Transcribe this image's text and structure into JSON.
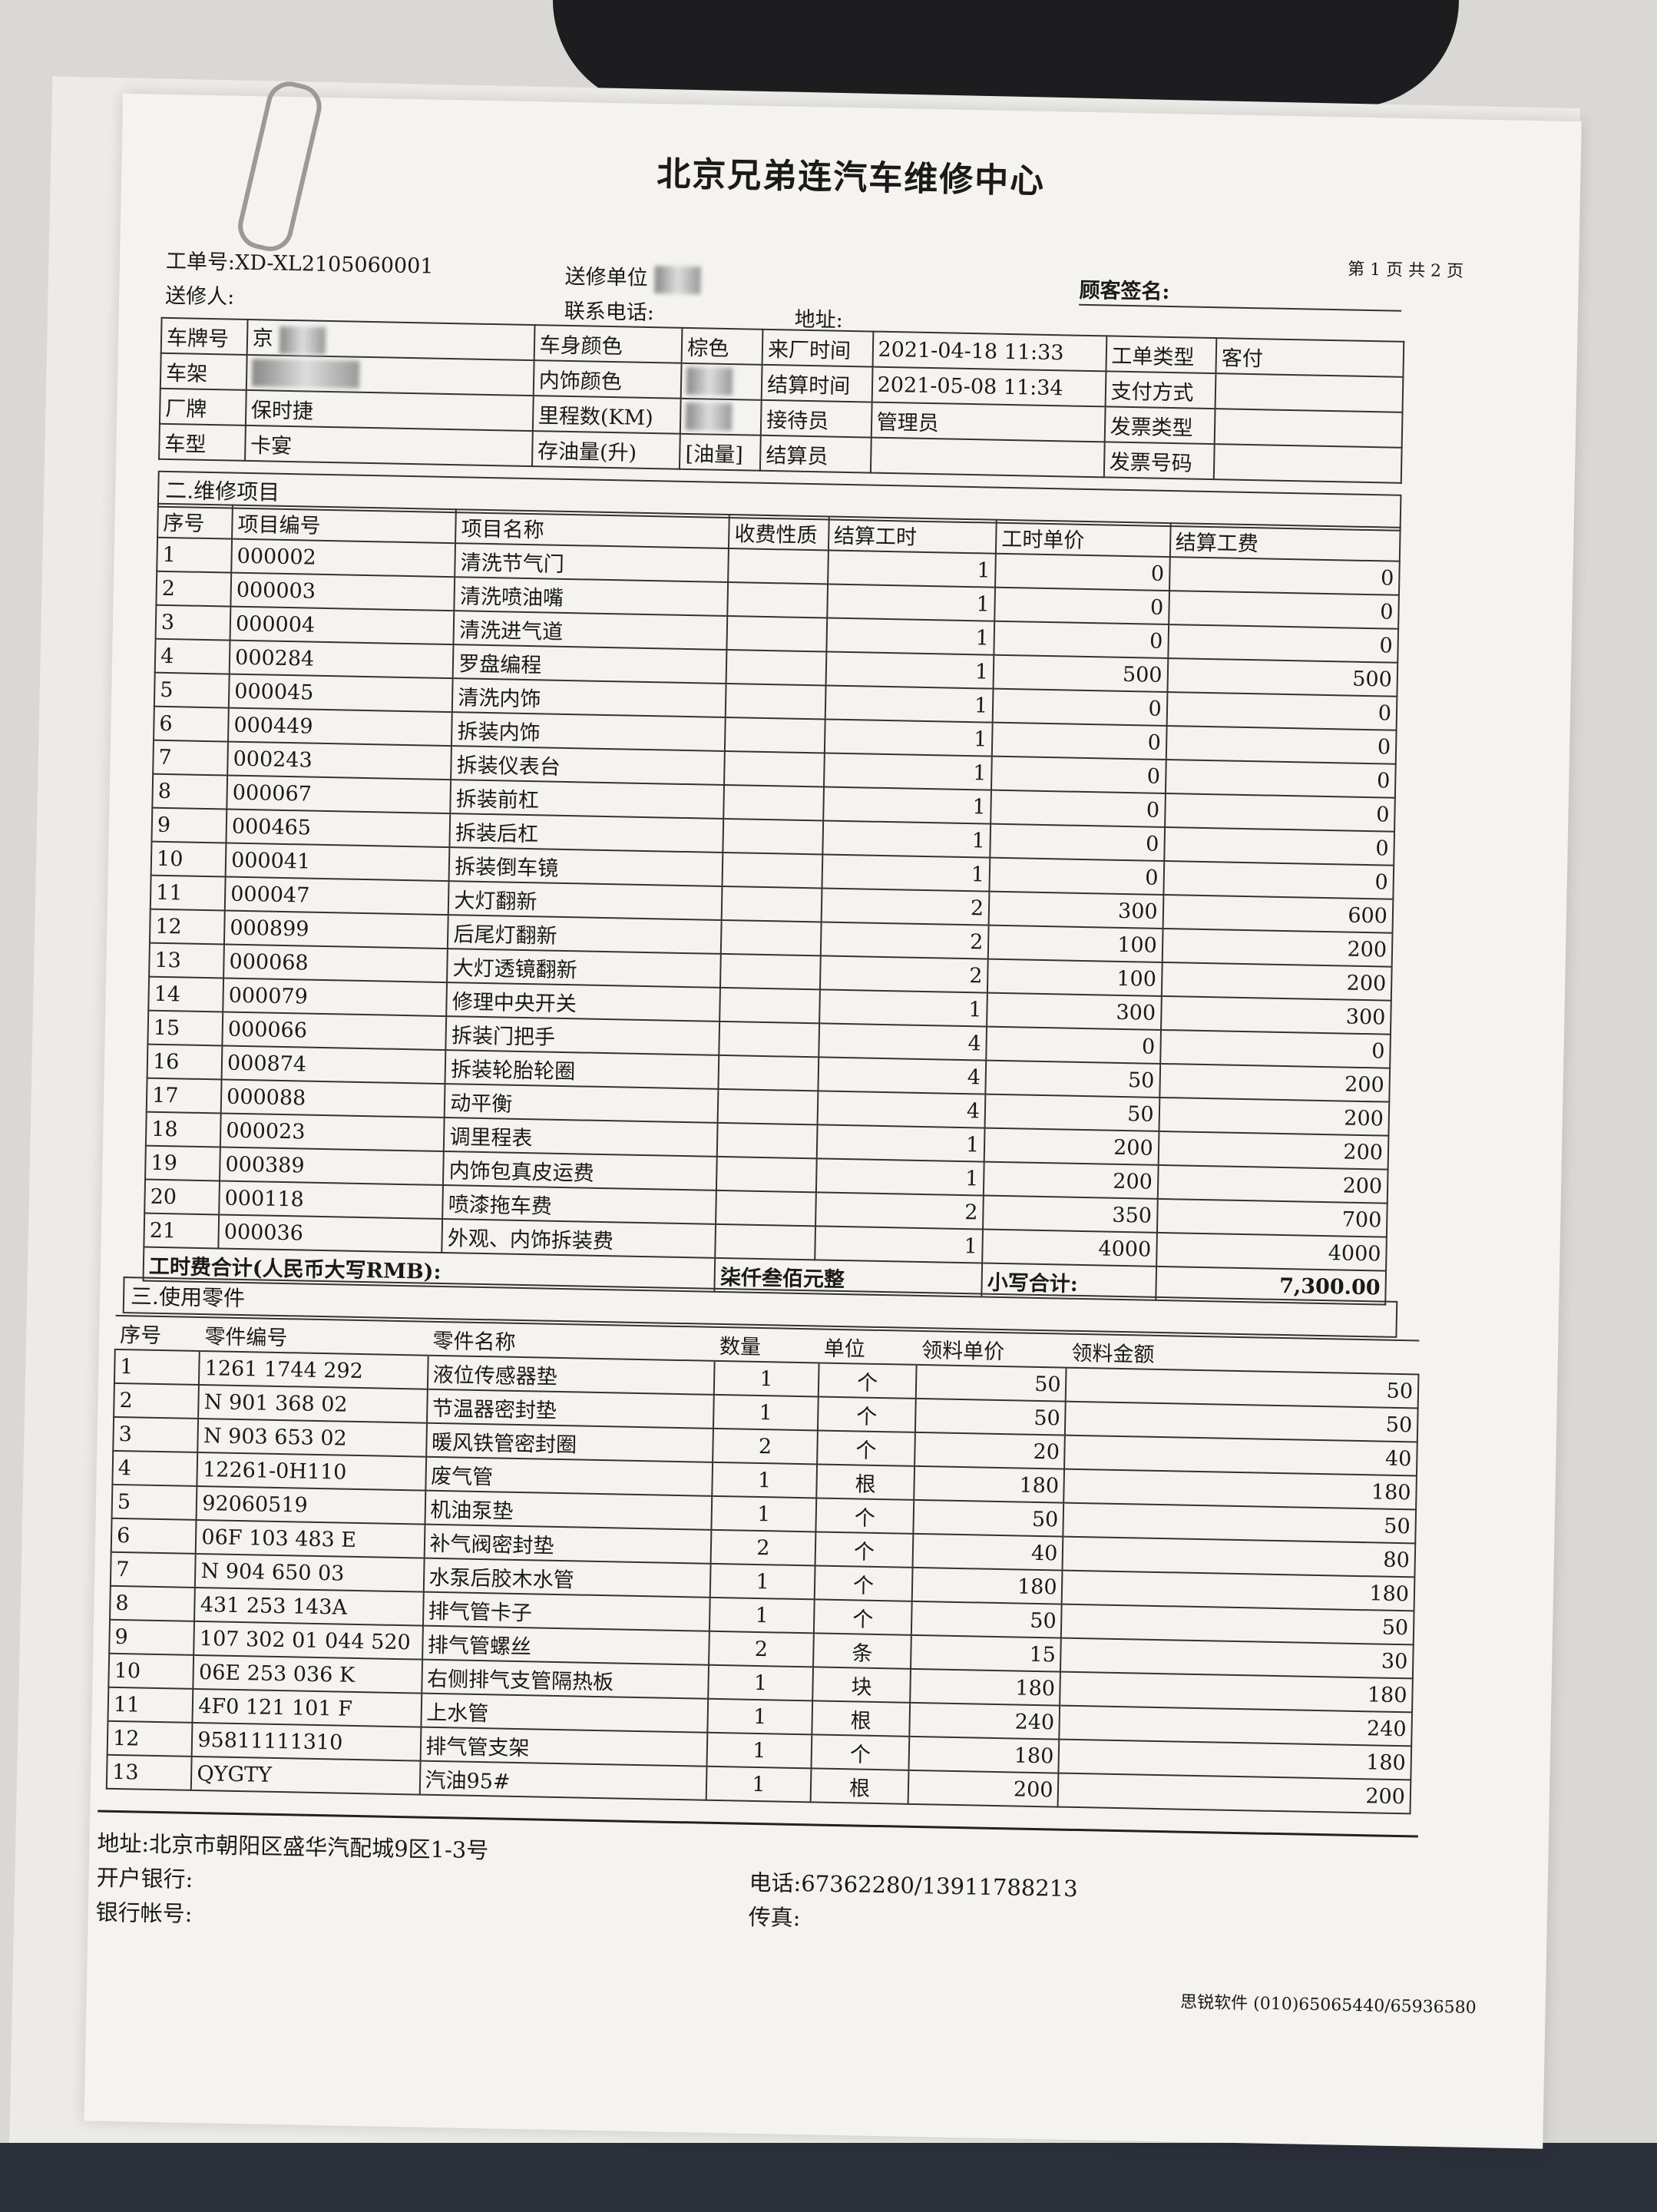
{
  "title": "北京兄弟连汽车维修中心",
  "page_info": "第 1 页 共 2 页",
  "header": {
    "order_no_label": "工单号:",
    "order_no": "XD-XL2105060001",
    "sender_unit_label": "送修单位",
    "customer_sign_label": "顾客签名:",
    "sender_label": "送修人:",
    "phone_label": "联系电话:",
    "address_label": "地址:"
  },
  "vehicle": {
    "plate_label": "车牌号",
    "plate_value": "京",
    "vin_label": "车架",
    "vin_value": "",
    "brand_label": "厂牌",
    "brand_value": "保时捷",
    "model_label": "车型",
    "model_value": "卡宴",
    "body_color_label": "车身颜色",
    "body_color_value": "棕色",
    "interior_color_label": "内饰颜色",
    "mileage_label": "里程数(KM)",
    "fuel_label": "存油量(升)",
    "fuel_value": "[油量]",
    "arrival_label": "来厂时间",
    "arrival_value": "2021-04-18 11:33",
    "settle_time_label": "结算时间",
    "settle_time_value": "2021-05-08 11:34",
    "receptionist_label": "接待员",
    "receptionist_value": "管理员",
    "settler_label": "结算员",
    "settler_value": "",
    "order_type_label": "工单类型",
    "order_type_value": "客付",
    "payment_label": "支付方式",
    "payment_value": "",
    "invoice_type_label": "发票类型",
    "invoice_type_value": "",
    "invoice_no_label": "发票号码",
    "invoice_no_value": ""
  },
  "labor": {
    "section_title": "二.维修项目",
    "columns": [
      "序号",
      "项目编号",
      "项目名称",
      "收费性质",
      "结算工时",
      "工时单价",
      "结算工费"
    ],
    "rows": [
      [
        "1",
        "000002",
        "清洗节气门",
        "",
        "1",
        "0",
        "0"
      ],
      [
        "2",
        "000003",
        "清洗喷油嘴",
        "",
        "1",
        "0",
        "0"
      ],
      [
        "3",
        "000004",
        "清洗进气道",
        "",
        "1",
        "0",
        "0"
      ],
      [
        "4",
        "000284",
        "罗盘编程",
        "",
        "1",
        "500",
        "500"
      ],
      [
        "5",
        "000045",
        "清洗内饰",
        "",
        "1",
        "0",
        "0"
      ],
      [
        "6",
        "000449",
        "拆装内饰",
        "",
        "1",
        "0",
        "0"
      ],
      [
        "7",
        "000243",
        "拆装仪表台",
        "",
        "1",
        "0",
        "0"
      ],
      [
        "8",
        "000067",
        "拆装前杠",
        "",
        "1",
        "0",
        "0"
      ],
      [
        "9",
        "000465",
        "拆装后杠",
        "",
        "1",
        "0",
        "0"
      ],
      [
        "10",
        "000041",
        "拆装倒车镜",
        "",
        "1",
        "0",
        "0"
      ],
      [
        "11",
        "000047",
        "大灯翻新",
        "",
        "2",
        "300",
        "600"
      ],
      [
        "12",
        "000899",
        "后尾灯翻新",
        "",
        "2",
        "100",
        "200"
      ],
      [
        "13",
        "000068",
        "大灯透镜翻新",
        "",
        "2",
        "100",
        "200"
      ],
      [
        "14",
        "000079",
        "修理中央开关",
        "",
        "1",
        "300",
        "300"
      ],
      [
        "15",
        "000066",
        "拆装门把手",
        "",
        "4",
        "0",
        "0"
      ],
      [
        "16",
        "000874",
        "拆装轮胎轮圈",
        "",
        "4",
        "50",
        "200"
      ],
      [
        "17",
        "000088",
        "动平衡",
        "",
        "4",
        "50",
        "200"
      ],
      [
        "18",
        "000023",
        "调里程表",
        "",
        "1",
        "200",
        "200"
      ],
      [
        "19",
        "000389",
        "内饰包真皮运费",
        "",
        "1",
        "200",
        "200"
      ],
      [
        "20",
        "000118",
        "喷漆拖车费",
        "",
        "2",
        "350",
        "700"
      ],
      [
        "21",
        "000036",
        "外观、内饰拆装费",
        "",
        "1",
        "4000",
        "4000"
      ]
    ],
    "total_label": "工时费合计(人民币大写RMB):",
    "total_words": "柒仟叁佰元整",
    "subtotal_label": "小写合计:",
    "subtotal": "7,300.00"
  },
  "parts": {
    "section_title": "三.使用零件",
    "columns": [
      "序号",
      "零件编号",
      "零件名称",
      "数量",
      "单位",
      "领料单价",
      "领料金额"
    ],
    "rows": [
      [
        "1",
        "1261 1744 292",
        "液位传感器垫",
        "1",
        "个",
        "50",
        "50"
      ],
      [
        "2",
        "N 901 368 02",
        "节温器密封垫",
        "1",
        "个",
        "50",
        "50"
      ],
      [
        "3",
        "N 903 653 02",
        "暖风铁管密封圈",
        "2",
        "个",
        "20",
        "40"
      ],
      [
        "4",
        "12261-0H110",
        "废气管",
        "1",
        "根",
        "180",
        "180"
      ],
      [
        "5",
        "92060519",
        "机油泵垫",
        "1",
        "个",
        "50",
        "50"
      ],
      [
        "6",
        "06F 103 483 E",
        "补气阀密封垫",
        "2",
        "个",
        "40",
        "80"
      ],
      [
        "7",
        "N 904 650 03",
        "水泵后胶木水管",
        "1",
        "个",
        "180",
        "180"
      ],
      [
        "8",
        "431 253 143A",
        "排气管卡子",
        "1",
        "个",
        "50",
        "50"
      ],
      [
        "9",
        "107 302 01 044 520",
        "排气管螺丝",
        "2",
        "条",
        "15",
        "30"
      ],
      [
        "10",
        "06E 253 036 K",
        "右侧排气支管隔热板",
        "1",
        "块",
        "180",
        "180"
      ],
      [
        "11",
        "4F0 121 101 F",
        "上水管",
        "1",
        "根",
        "240",
        "240"
      ],
      [
        "12",
        "95811111310",
        "排气管支架",
        "1",
        "个",
        "180",
        "180"
      ],
      [
        "13",
        "QYGTY",
        "汽油95#",
        "1",
        "根",
        "200",
        "200"
      ]
    ]
  },
  "footer": {
    "address": "地址:北京市朝阳区盛华汽配城9区1-3号",
    "bank_label": "开户银行:",
    "account_label": "银行帐号:",
    "phone": "电话:67362280/13911788213",
    "fax_label": "传真:",
    "software": "思锐软件 (010)65065440/65936580"
  }
}
